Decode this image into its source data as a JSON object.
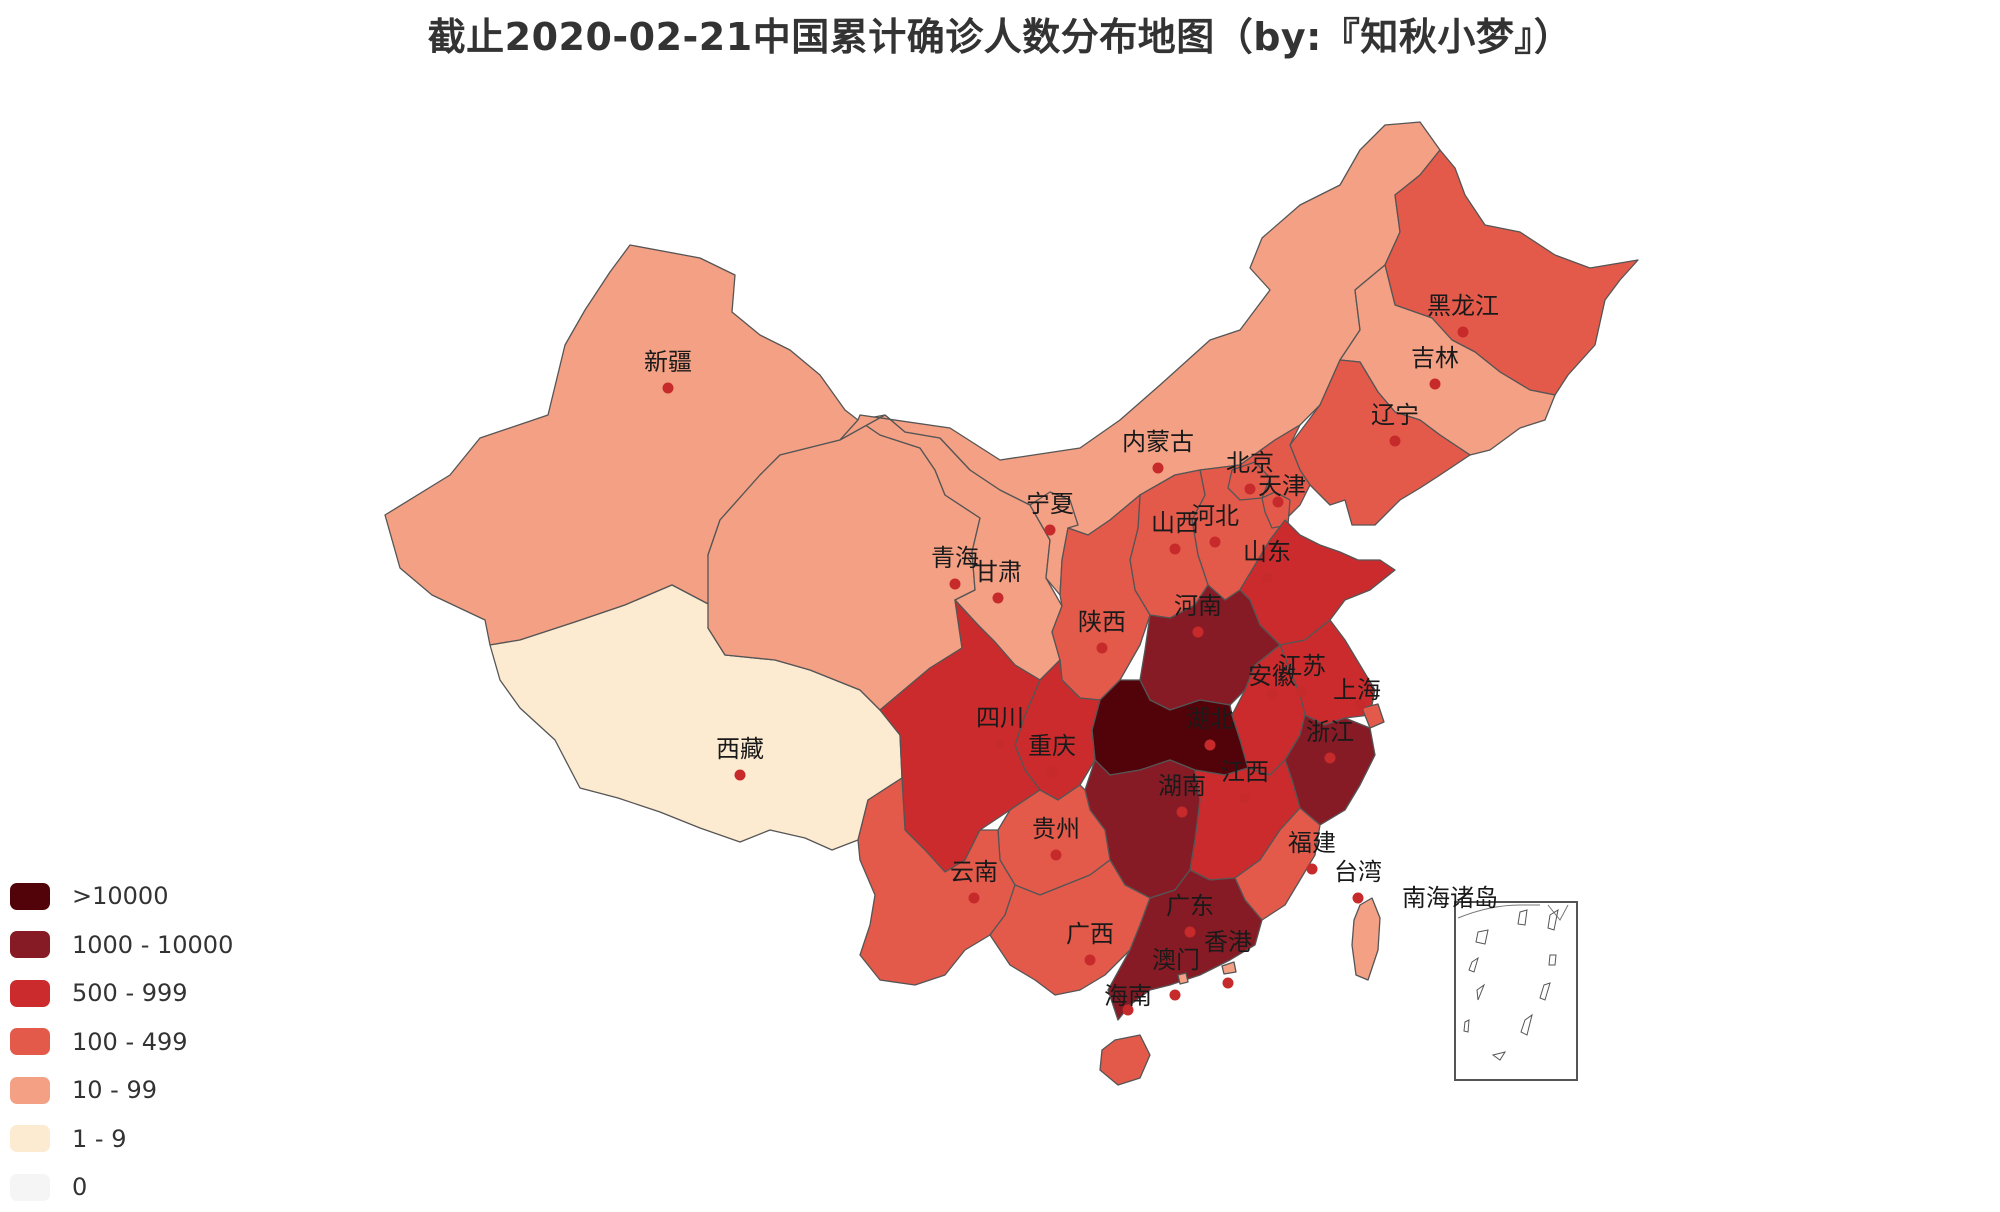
{
  "title": "截止2020-02-21中国累计确诊人数分布地图（by:『知秋小梦』）",
  "colors": {
    "c0": "#f5f5f5",
    "c1": "#fcebd1",
    "c2": "#f3a084",
    "c3": "#e35a4b",
    "c4": "#cc2b2d",
    "c5": "#861b25",
    "c6": "#520309"
  },
  "legend": [
    {
      "label": ">10000",
      "color": "#520309"
    },
    {
      "label": "1000 - 10000",
      "color": "#861b25"
    },
    {
      "label": "500 - 999",
      "color": "#cc2b2d"
    },
    {
      "label": "100 - 499",
      "color": "#e35a4b"
    },
    {
      "label": "10 - 99",
      "color": "#f3a084"
    },
    {
      "label": "1 - 9",
      "color": "#fcebd1"
    },
    {
      "label": "0",
      "color": "#f5f5f5"
    }
  ],
  "provinces": [
    {
      "id": "xinjiang",
      "name": "新疆",
      "range": "10 - 99"
    },
    {
      "id": "xizang",
      "name": "西藏",
      "range": "1 - 9"
    },
    {
      "id": "qinghai",
      "name": "青海",
      "range": "10 - 99"
    },
    {
      "id": "gansu",
      "name": "甘肃",
      "range": "10 - 99"
    },
    {
      "id": "neimenggu",
      "name": "内蒙古",
      "range": "10 - 99"
    },
    {
      "id": "ningxia",
      "name": "宁夏",
      "range": "10 - 99"
    },
    {
      "id": "heilongjiang",
      "name": "黑龙江",
      "range": "100 - 499"
    },
    {
      "id": "jilin",
      "name": "吉林",
      "range": "10 - 99"
    },
    {
      "id": "liaoning",
      "name": "辽宁",
      "range": "100 - 499"
    },
    {
      "id": "beijing",
      "name": "北京",
      "range": "100 - 499"
    },
    {
      "id": "tianjin",
      "name": "天津",
      "range": "100 - 499"
    },
    {
      "id": "hebei",
      "name": "河北",
      "range": "100 - 499"
    },
    {
      "id": "shanxi",
      "name": "山西",
      "range": "100 - 499"
    },
    {
      "id": "shaanxi",
      "name": "陕西",
      "range": "100 - 499"
    },
    {
      "id": "shandong",
      "name": "山东",
      "range": "500 - 999"
    },
    {
      "id": "henan",
      "name": "河南",
      "range": "1000 - 10000"
    },
    {
      "id": "jiangsu",
      "name": "江苏",
      "range": "500 - 999"
    },
    {
      "id": "anhui",
      "name": "安徽",
      "range": "500 - 999"
    },
    {
      "id": "shanghai",
      "name": "上海",
      "range": "100 - 499"
    },
    {
      "id": "zhejiang",
      "name": "浙江",
      "range": "1000 - 10000"
    },
    {
      "id": "hubei",
      "name": "湖北",
      "range": ">10000"
    },
    {
      "id": "sichuan",
      "name": "四川",
      "range": "500 - 999"
    },
    {
      "id": "chongqing",
      "name": "重庆",
      "range": "500 - 999"
    },
    {
      "id": "hunan",
      "name": "湖南",
      "range": "1000 - 10000"
    },
    {
      "id": "jiangxi",
      "name": "江西",
      "range": "500 - 999"
    },
    {
      "id": "guizhou",
      "name": "贵州",
      "range": "100 - 499"
    },
    {
      "id": "yunnan",
      "name": "云南",
      "range": "100 - 499"
    },
    {
      "id": "fujian",
      "name": "福建",
      "range": "100 - 499"
    },
    {
      "id": "guangxi",
      "name": "广西",
      "range": "100 - 499"
    },
    {
      "id": "guangdong",
      "name": "广东",
      "range": "1000 - 10000"
    },
    {
      "id": "taiwan",
      "name": "台湾",
      "range": "10 - 99"
    },
    {
      "id": "xianggang",
      "name": "香港",
      "range": "10 - 99"
    },
    {
      "id": "aomen",
      "name": "澳门",
      "range": "10 - 99"
    },
    {
      "id": "hainan",
      "name": "海南",
      "range": "100 - 499"
    }
  ],
  "inset": {
    "name": "南海诸岛"
  }
}
